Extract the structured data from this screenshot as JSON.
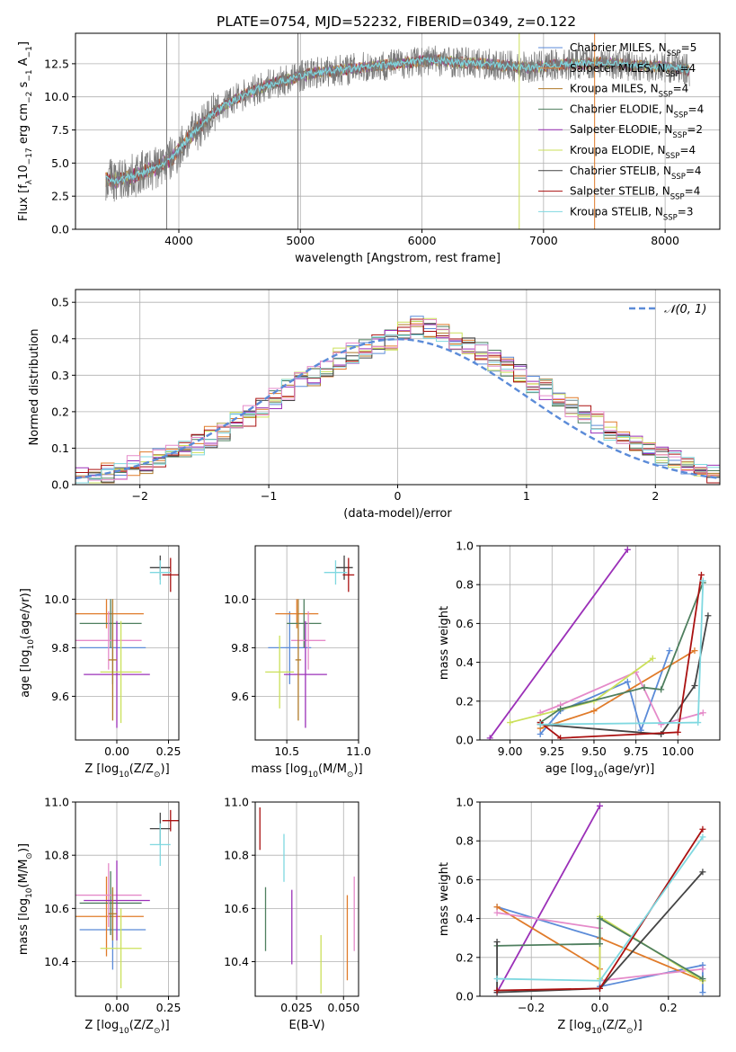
{
  "title": "PLATE=0754, MJD=52232, FIBERID=0349, z=0.122",
  "colors": {
    "s0": "#5b8bd8",
    "s1": "#e07b2a",
    "s2": "#b07a2a",
    "s3": "#4f7f5f",
    "s4": "#9b30b8",
    "s5": "#cbe05a",
    "s6": "#444444",
    "s7": "#aa1111",
    "s8": "#7fd8e0",
    "pink": "#e58ac9",
    "normal": "#5b8bd8",
    "grid": "#b0b0b0",
    "spectrum_gray": "#777777"
  },
  "chart_data": [
    {
      "type": "line",
      "xlabel": "wavelength [Angstrom, rest frame]",
      "ylabel_parts": [
        "Flux [f",
        "λ",
        "10",
        "−17",
        " erg cm",
        "−2",
        " s",
        "−1",
        " A",
        "−1",
        "]"
      ],
      "xlim": [
        3150,
        8450
      ],
      "ylim": [
        0,
        14.8
      ],
      "xticks": [
        4000,
        5000,
        6000,
        7000,
        8000
      ],
      "yticks": [
        0.0,
        2.5,
        5.0,
        7.5,
        10.0,
        12.5
      ],
      "ytick_labels": [
        "0.0",
        "2.5",
        "5.0",
        "7.5",
        "10.0",
        "12.5"
      ],
      "continuum": {
        "x": [
          3400,
          3500,
          3650,
          3800,
          3950,
          4050,
          4150,
          4300,
          4500,
          4700,
          4900,
          5100,
          5300,
          5500,
          5700,
          5900,
          6100,
          6300,
          6500,
          6700,
          6900,
          7100,
          7300,
          7500,
          7700,
          7900,
          8100,
          8200
        ],
        "y": [
          3.8,
          3.7,
          4.1,
          4.6,
          5.4,
          6.6,
          7.6,
          8.9,
          10.0,
          10.8,
          11.3,
          11.8,
          12.0,
          12.2,
          12.4,
          12.6,
          12.8,
          12.6,
          12.5,
          12.3,
          12.2,
          12.4,
          12.5,
          12.6,
          12.4,
          12.3,
          12.2,
          12.0
        ]
      },
      "vertical_lines": [
        {
          "x": 3900,
          "color_key": "spectrum_gray"
        },
        {
          "x": 4980,
          "color_key": "spectrum_gray"
        },
        {
          "x": 6800,
          "color_key": "s5"
        },
        {
          "x": 7420,
          "color_key": "s1"
        }
      ],
      "legend_placement": "right",
      "legend": [
        {
          "label": "Chabrier MILES, N",
          "sub": "SSP",
          "tail": "=5",
          "color_key": "s0"
        },
        {
          "label": "Salpeter MILES, N",
          "sub": "SSP",
          "tail": "=4",
          "color_key": "s1"
        },
        {
          "label": "Kroupa MILES, N",
          "sub": "SSP",
          "tail": "=4",
          "color_key": "s2"
        },
        {
          "label": "Chabrier ELODIE, N",
          "sub": "SSP",
          "tail": "=4",
          "color_key": "s3"
        },
        {
          "label": "Salpeter ELODIE, N",
          "sub": "SSP",
          "tail": "=2",
          "color_key": "s4"
        },
        {
          "label": "Kroupa ELODIE, N",
          "sub": "SSP",
          "tail": "=4",
          "color_key": "s5"
        },
        {
          "label": "Chabrier STELIB, N",
          "sub": "SSP",
          "tail": "=4",
          "color_key": "s6"
        },
        {
          "label": "Salpeter STELIB, N",
          "sub": "SSP",
          "tail": "=4",
          "color_key": "s7"
        },
        {
          "label": "Kroupa STELIB, N",
          "sub": "SSP",
          "tail": "=3",
          "color_key": "s8"
        }
      ]
    },
    {
      "type": "histogram",
      "xlabel": "(data-model)/error",
      "ylabel": "Normed distribution",
      "xlim": [
        -2.5,
        2.5
      ],
      "ylim": [
        0,
        0.535
      ],
      "xticks": [
        -2,
        -1,
        0,
        1,
        2
      ],
      "xtick_labels": [
        "−2",
        "−1",
        "0",
        "1",
        "2"
      ],
      "yticks": [
        0.0,
        0.1,
        0.2,
        0.3,
        0.4,
        0.5
      ],
      "ytick_labels": [
        "0.0",
        "0.1",
        "0.2",
        "0.3",
        "0.4",
        "0.5"
      ],
      "bin_start": -2.5,
      "bin_width": 0.1,
      "base": [
        0.02,
        0.025,
        0.03,
        0.04,
        0.05,
        0.06,
        0.07,
        0.085,
        0.1,
        0.11,
        0.13,
        0.15,
        0.17,
        0.19,
        0.21,
        0.235,
        0.26,
        0.28,
        0.3,
        0.32,
        0.345,
        0.36,
        0.375,
        0.385,
        0.395,
        0.42,
        0.44,
        0.43,
        0.41,
        0.395,
        0.38,
        0.36,
        0.34,
        0.32,
        0.3,
        0.28,
        0.26,
        0.235,
        0.21,
        0.19,
        0.17,
        0.15,
        0.13,
        0.11,
        0.095,
        0.08,
        0.065,
        0.05,
        0.04,
        0.03
      ],
      "legend_label": "𝒩(0, 1)",
      "legend_placement": "top-right",
      "normal_curve": true
    },
    {
      "type": "errorbar",
      "xlabel_parts": [
        "Z [log",
        "10",
        "(Z/Z",
        "⊙",
        ")]"
      ],
      "ylabel_parts": [
        "age  [log",
        "10",
        "(age/yr)]"
      ],
      "xlim": [
        -0.2,
        0.3
      ],
      "ylim": [
        9.42,
        10.22
      ],
      "xticks": [
        0.0,
        0.25
      ],
      "xtick_labels": [
        "0.00",
        "0.25"
      ],
      "yticks": [
        9.6,
        9.8,
        10.0
      ],
      "ytick_labels": [
        "9.6",
        "9.8",
        "10.0"
      ],
      "points": [
        {
          "x": -0.02,
          "y": 9.8,
          "xerr": 0.16,
          "yerr": 0.15,
          "color_key": "s0"
        },
        {
          "x": -0.05,
          "y": 9.94,
          "xerr": 0.18,
          "yerr": 0.06,
          "color_key": "s1"
        },
        {
          "x": -0.03,
          "y": 9.9,
          "xerr": 0.15,
          "yerr": 0.1,
          "color_key": "s3"
        },
        {
          "x": -0.04,
          "y": 9.83,
          "xerr": 0.16,
          "yerr": 0.12,
          "color_key": "pink"
        },
        {
          "x": 0.0,
          "y": 9.69,
          "xerr": 0.16,
          "yerr": 0.22,
          "color_key": "s4"
        },
        {
          "x": 0.02,
          "y": 9.7,
          "xerr": 0.1,
          "yerr": 0.21,
          "color_key": "s5"
        },
        {
          "x": -0.02,
          "y": 9.75,
          "xerr": 0.02,
          "yerr": 0.25,
          "color_key": "s2"
        },
        {
          "x": 0.21,
          "y": 10.13,
          "xerr": 0.05,
          "yerr": 0.05,
          "color_key": "s6"
        },
        {
          "x": 0.26,
          "y": 10.1,
          "xerr": 0.04,
          "yerr": 0.07,
          "color_key": "s7"
        },
        {
          "x": 0.21,
          "y": 10.11,
          "xerr": 0.05,
          "yerr": 0.05,
          "color_key": "s8"
        }
      ]
    },
    {
      "type": "errorbar",
      "xlabel_parts": [
        "mass [log",
        "10",
        "(M/M",
        "⊙",
        ")]"
      ],
      "ylabel_parts": [],
      "xlim": [
        10.28,
        11.0
      ],
      "ylim": [
        9.42,
        10.22
      ],
      "xticks": [
        10.5,
        11.0
      ],
      "xtick_labels": [
        "10.5",
        "11.0"
      ],
      "yticks": [
        9.6,
        9.8,
        10.0
      ],
      "ytick_labels": [
        "9.6",
        "9.8",
        "10.0"
      ],
      "points": [
        {
          "x": 10.52,
          "y": 9.8,
          "xerr": 0.15,
          "yerr": 0.15,
          "color_key": "s0"
        },
        {
          "x": 10.57,
          "y": 9.94,
          "xerr": 0.15,
          "yerr": 0.06,
          "color_key": "s1"
        },
        {
          "x": 10.62,
          "y": 9.9,
          "xerr": 0.12,
          "yerr": 0.1,
          "color_key": "s3"
        },
        {
          "x": 10.65,
          "y": 9.83,
          "xerr": 0.12,
          "yerr": 0.12,
          "color_key": "pink"
        },
        {
          "x": 10.63,
          "y": 9.69,
          "xerr": 0.15,
          "yerr": 0.22,
          "color_key": "s4"
        },
        {
          "x": 10.45,
          "y": 9.7,
          "xerr": 0.1,
          "yerr": 0.15,
          "color_key": "s5"
        },
        {
          "x": 10.58,
          "y": 9.75,
          "xerr": 0.02,
          "yerr": 0.25,
          "color_key": "s2"
        },
        {
          "x": 10.9,
          "y": 10.13,
          "xerr": 0.06,
          "yerr": 0.05,
          "color_key": "s6"
        },
        {
          "x": 10.93,
          "y": 10.1,
          "xerr": 0.04,
          "yerr": 0.07,
          "color_key": "s7"
        },
        {
          "x": 10.84,
          "y": 10.11,
          "xerr": 0.08,
          "yerr": 0.05,
          "color_key": "s8"
        }
      ]
    },
    {
      "type": "line",
      "xlabel_parts": [
        "age  [log",
        "10",
        "(age/yr)]"
      ],
      "ylabel": "mass weight",
      "xlim": [
        8.82,
        10.25
      ],
      "ylim": [
        0,
        1.0
      ],
      "xticks": [
        9.0,
        9.25,
        9.5,
        9.75,
        10.0
      ],
      "xtick_labels": [
        "9.00",
        "9.25",
        "9.50",
        "9.75",
        "10.00"
      ],
      "yticks": [
        0.0,
        0.2,
        0.4,
        0.6,
        0.8,
        1.0
      ],
      "ytick_labels": [
        "0.0",
        "0.2",
        "0.4",
        "0.6",
        "0.8",
        "1.0"
      ],
      "series": [
        {
          "color_key": "s4",
          "x": [
            8.88,
            9.7
          ],
          "y": [
            0.01,
            0.98
          ]
        },
        {
          "color_key": "s0",
          "x": [
            9.18,
            9.3,
            9.7,
            9.78,
            9.95
          ],
          "y": [
            0.03,
            0.15,
            0.3,
            0.05,
            0.46
          ]
        },
        {
          "color_key": "s1",
          "x": [
            9.18,
            9.5,
            10.1
          ],
          "y": [
            0.06,
            0.15,
            0.46
          ]
        },
        {
          "color_key": "pink",
          "x": [
            9.18,
            9.3,
            9.75,
            9.9,
            10.15
          ],
          "y": [
            0.14,
            0.18,
            0.35,
            0.08,
            0.14
          ]
        },
        {
          "color_key": "s5",
          "x": [
            9.0,
            9.5,
            9.85
          ],
          "y": [
            0.09,
            0.2,
            0.42
          ]
        },
        {
          "color_key": "s3",
          "x": [
            9.18,
            9.3,
            9.8,
            9.9,
            10.15
          ],
          "y": [
            0.09,
            0.16,
            0.27,
            0.26,
            0.81
          ]
        },
        {
          "color_key": "s6",
          "x": [
            9.18,
            9.9,
            10.1,
            10.18
          ],
          "y": [
            0.08,
            0.03,
            0.28,
            0.64
          ]
        },
        {
          "color_key": "s7",
          "x": [
            9.18,
            9.3,
            10.0,
            10.14
          ],
          "y": [
            0.09,
            0.01,
            0.04,
            0.85
          ]
        },
        {
          "color_key": "s8",
          "x": [
            9.18,
            10.12,
            10.15
          ],
          "y": [
            0.08,
            0.09,
            0.82
          ]
        }
      ]
    },
    {
      "type": "errorbar",
      "xlabel_parts": [
        "Z [log",
        "10",
        "(Z/Z",
        "⊙",
        ")]"
      ],
      "ylabel_parts": [
        "mass [log",
        "10",
        "(M/M",
        "⊙",
        ")]"
      ],
      "xlim": [
        -0.2,
        0.3
      ],
      "ylim": [
        10.27,
        11.0
      ],
      "xticks": [
        0.0,
        0.25
      ],
      "xtick_labels": [
        "0.00",
        "0.25"
      ],
      "yticks": [
        10.4,
        10.6,
        10.8,
        11.0
      ],
      "ytick_labels": [
        "10.4",
        "10.6",
        "10.8",
        "11.0"
      ],
      "points": [
        {
          "x": -0.02,
          "y": 10.52,
          "xerr": 0.16,
          "yerr": 0.15,
          "color_key": "s0"
        },
        {
          "x": -0.05,
          "y": 10.57,
          "xerr": 0.18,
          "yerr": 0.15,
          "color_key": "s1"
        },
        {
          "x": -0.03,
          "y": 10.62,
          "xerr": 0.15,
          "yerr": 0.12,
          "color_key": "s3"
        },
        {
          "x": -0.04,
          "y": 10.65,
          "xerr": 0.16,
          "yerr": 0.12,
          "color_key": "pink"
        },
        {
          "x": 0.0,
          "y": 10.63,
          "xerr": 0.16,
          "yerr": 0.15,
          "color_key": "s4"
        },
        {
          "x": 0.02,
          "y": 10.45,
          "xerr": 0.1,
          "yerr": 0.15,
          "color_key": "s5"
        },
        {
          "x": -0.02,
          "y": 10.58,
          "xerr": 0.02,
          "yerr": 0.1,
          "color_key": "s2"
        },
        {
          "x": 0.21,
          "y": 10.9,
          "xerr": 0.05,
          "yerr": 0.06,
          "color_key": "s6"
        },
        {
          "x": 0.26,
          "y": 10.93,
          "xerr": 0.04,
          "yerr": 0.04,
          "color_key": "s7"
        },
        {
          "x": 0.21,
          "y": 10.84,
          "xerr": 0.05,
          "yerr": 0.08,
          "color_key": "s8"
        }
      ]
    },
    {
      "type": "errorbar",
      "xlabel": "E(B-V)",
      "ylabel_parts": [],
      "xlim": [
        0.003,
        0.058
      ],
      "ylim": [
        10.27,
        11.0
      ],
      "xticks": [
        0.025,
        0.05
      ],
      "xtick_labels": [
        "0.025",
        "0.050"
      ],
      "yticks": [
        10.4,
        10.6,
        10.8,
        11.0
      ],
      "ytick_labels": [
        "10.4",
        "10.6",
        "10.8",
        "11.0"
      ],
      "points": [
        {
          "x": 0.0055,
          "y": 10.9,
          "xerr": 0,
          "yerr": 0.08,
          "color_key": "s7"
        },
        {
          "x": 0.0085,
          "y": 10.56,
          "xerr": 0,
          "yerr": 0.12,
          "color_key": "s3"
        },
        {
          "x": 0.0183,
          "y": 10.79,
          "xerr": 0,
          "yerr": 0.09,
          "color_key": "s8"
        },
        {
          "x": 0.0225,
          "y": 10.53,
          "xerr": 0,
          "yerr": 0.14,
          "color_key": "s4"
        },
        {
          "x": 0.038,
          "y": 10.39,
          "xerr": 0,
          "yerr": 0.11,
          "color_key": "s5"
        },
        {
          "x": 0.052,
          "y": 10.49,
          "xerr": 0,
          "yerr": 0.16,
          "color_key": "s1"
        },
        {
          "x": 0.0557,
          "y": 10.58,
          "xerr": 0,
          "yerr": 0.14,
          "color_key": "pink"
        }
      ]
    },
    {
      "type": "line",
      "xlabel_parts": [
        "Z [log",
        "10",
        "(Z/Z",
        "⊙",
        ")]"
      ],
      "ylabel": "mass weight",
      "xlim": [
        -0.35,
        0.35
      ],
      "ylim": [
        0,
        1.0
      ],
      "xticks": [
        -0.2,
        0.0,
        0.2
      ],
      "xtick_labels": [
        "−0.2",
        "0.0",
        "0.2"
      ],
      "yticks": [
        0.0,
        0.2,
        0.4,
        0.6,
        0.8,
        1.0
      ],
      "ytick_labels": [
        "0.0",
        "0.2",
        "0.4",
        "0.6",
        "0.8",
        "1.0"
      ],
      "series": [
        {
          "color_key": "s4",
          "x": [
            -0.3,
            0.0
          ],
          "y": [
            0.02,
            0.98
          ]
        },
        {
          "color_key": "s0",
          "x": [
            -0.3,
            0.0,
            0.0,
            0.3,
            0.3
          ],
          "y": [
            0.46,
            0.3,
            0.05,
            0.16,
            0.02
          ]
        },
        {
          "color_key": "s1",
          "x": [
            -0.3,
            0.0,
            0.0,
            0.3
          ],
          "y": [
            0.46,
            0.14,
            0.3,
            0.08
          ]
        },
        {
          "color_key": "pink",
          "x": [
            -0.3,
            0.0,
            0.0,
            0.3
          ],
          "y": [
            0.43,
            0.35,
            0.08,
            0.14
          ]
        },
        {
          "color_key": "s5",
          "x": [
            0.0,
            0.0,
            0.3
          ],
          "y": [
            0.09,
            0.41,
            0.08
          ]
        },
        {
          "color_key": "s3",
          "x": [
            -0.3,
            0.0,
            0.0,
            0.3
          ],
          "y": [
            0.26,
            0.27,
            0.4,
            0.09
          ]
        },
        {
          "color_key": "s6",
          "x": [
            -0.3,
            -0.3,
            0.0,
            0.3
          ],
          "y": [
            0.28,
            0.02,
            0.04,
            0.64
          ]
        },
        {
          "color_key": "s7",
          "x": [
            -0.3,
            0.0,
            0.3
          ],
          "y": [
            0.03,
            0.04,
            0.86
          ]
        },
        {
          "color_key": "s8",
          "x": [
            -0.3,
            0.0,
            0.3
          ],
          "y": [
            0.09,
            0.08,
            0.82
          ]
        }
      ]
    }
  ]
}
